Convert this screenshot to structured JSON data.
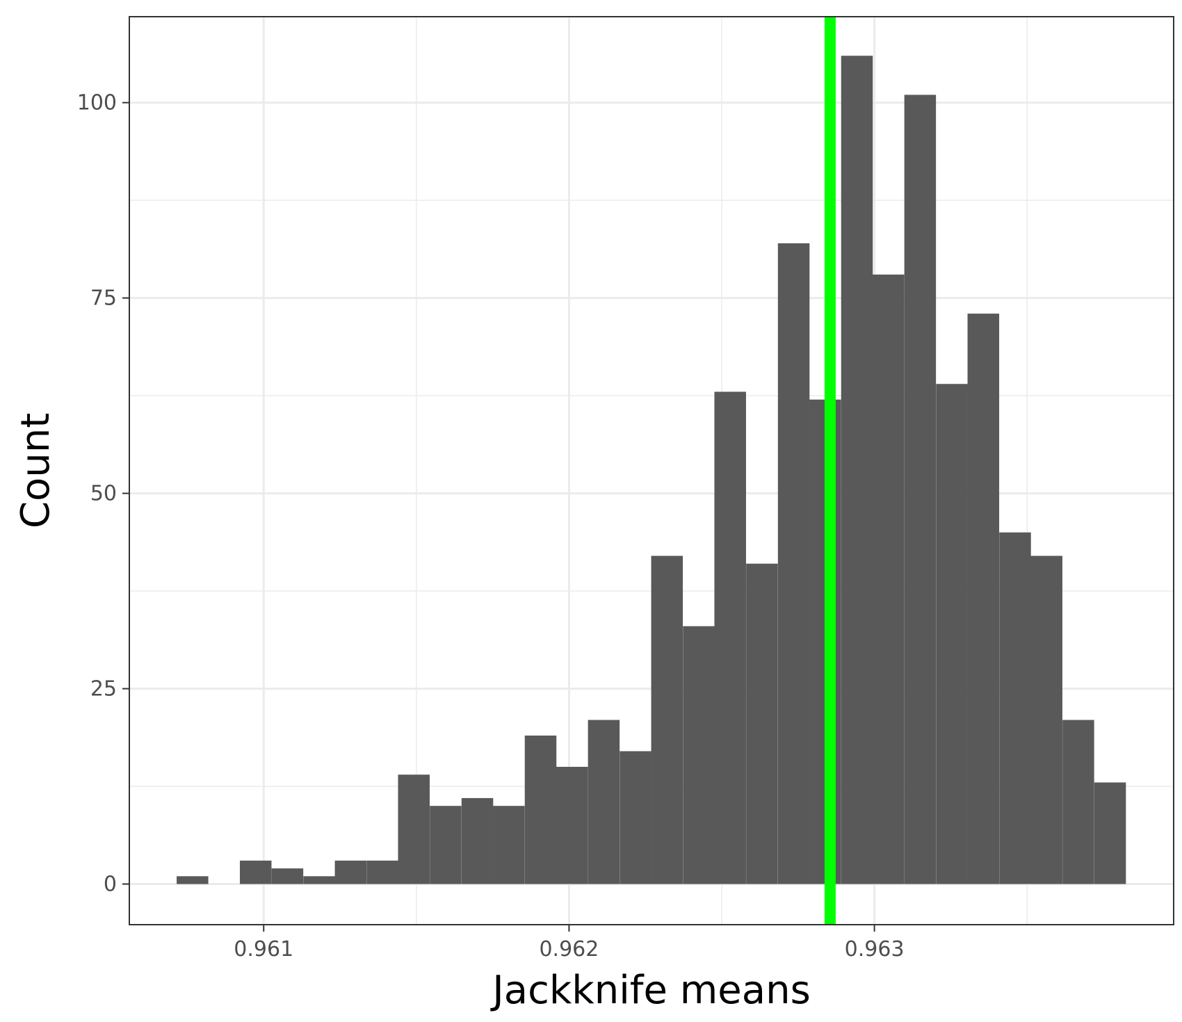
{
  "chart_data": {
    "type": "bar",
    "title": "",
    "xlabel": "Jackknife means",
    "ylabel": "Count",
    "xlim": [
      0.96056,
      0.96398
    ],
    "ylim": [
      -5.2,
      111
    ],
    "x_major_ticks": [
      0.961,
      0.962,
      0.963
    ],
    "x_minor_ticks": [
      0.9615,
      0.9625,
      0.9635
    ],
    "x_tick_labels": [
      "0.961",
      "0.962",
      "0.963"
    ],
    "y_major_ticks": [
      0,
      25,
      50,
      75,
      100
    ],
    "y_minor_ticks": [
      12.5,
      37.5,
      62.5,
      87.5
    ],
    "y_tick_labels": [
      "0",
      "25",
      "50",
      "75",
      "100"
    ],
    "grid": true,
    "bin_width": 0.0001036,
    "bins": [
      {
        "x_start": 0.960715,
        "count": 1
      },
      {
        "x_start": 0.960819,
        "count": 0
      },
      {
        "x_start": 0.960922,
        "count": 3
      },
      {
        "x_start": 0.961026,
        "count": 2
      },
      {
        "x_start": 0.96113,
        "count": 1
      },
      {
        "x_start": 0.961233,
        "count": 3
      },
      {
        "x_start": 0.961337,
        "count": 3
      },
      {
        "x_start": 0.96144,
        "count": 14
      },
      {
        "x_start": 0.961544,
        "count": 10
      },
      {
        "x_start": 0.961648,
        "count": 11
      },
      {
        "x_start": 0.961751,
        "count": 10
      },
      {
        "x_start": 0.961855,
        "count": 19
      },
      {
        "x_start": 0.961958,
        "count": 15
      },
      {
        "x_start": 0.962062,
        "count": 21
      },
      {
        "x_start": 0.962166,
        "count": 17
      },
      {
        "x_start": 0.962269,
        "count": 42
      },
      {
        "x_start": 0.962373,
        "count": 33
      },
      {
        "x_start": 0.962476,
        "count": 63
      },
      {
        "x_start": 0.96258,
        "count": 41
      },
      {
        "x_start": 0.962684,
        "count": 82
      },
      {
        "x_start": 0.962787,
        "count": 62
      },
      {
        "x_start": 0.962891,
        "count": 106
      },
      {
        "x_start": 0.962994,
        "count": 78
      },
      {
        "x_start": 0.963098,
        "count": 101
      },
      {
        "x_start": 0.963202,
        "count": 64
      },
      {
        "x_start": 0.963305,
        "count": 73
      },
      {
        "x_start": 0.963409,
        "count": 45
      },
      {
        "x_start": 0.963512,
        "count": 42
      },
      {
        "x_start": 0.963616,
        "count": 21
      },
      {
        "x_start": 0.96372,
        "count": 13
      }
    ],
    "vline": {
      "x": 0.962855,
      "color": "#00ff00"
    },
    "bar_color": "#595959",
    "grid_color": "#ebebeb",
    "panel_border_color": "#333333"
  }
}
